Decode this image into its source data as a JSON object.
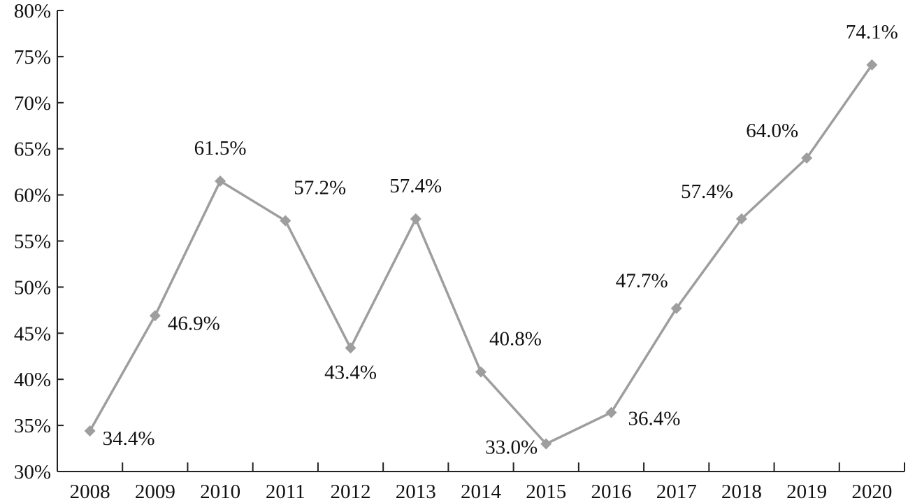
{
  "chart_data": {
    "type": "line",
    "title": "",
    "xlabel": "",
    "ylabel": "",
    "categories": [
      "2008",
      "2009",
      "2010",
      "2011",
      "2012",
      "2013",
      "2014",
      "2015",
      "2016",
      "2017",
      "2018",
      "2019",
      "2020"
    ],
    "series": [
      {
        "values": [
          34.4,
          46.9,
          61.5,
          57.2,
          43.4,
          57.4,
          40.8,
          33.0,
          36.4,
          47.7,
          57.4,
          64.0,
          74.1
        ],
        "data_labels": [
          "34.4%",
          "46.9%",
          "61.5%",
          "57.2%",
          "43.4%",
          "57.4%",
          "40.8%",
          "33.0%",
          "36.4%",
          "47.7%",
          "57.4%",
          "64.0%",
          "74.1%"
        ],
        "color": "#9e9e9e",
        "marker": "diamond"
      }
    ],
    "ylim": [
      30,
      80
    ],
    "yticks": [
      30,
      35,
      40,
      45,
      50,
      55,
      60,
      65,
      70,
      75,
      80
    ],
    "ytick_labels": [
      "30%",
      "35%",
      "40%",
      "45%",
      "50%",
      "55%",
      "60%",
      "65%",
      "70%",
      "75%",
      "80%"
    ],
    "grid": false,
    "legend": "none",
    "axis_color": "#222222"
  }
}
